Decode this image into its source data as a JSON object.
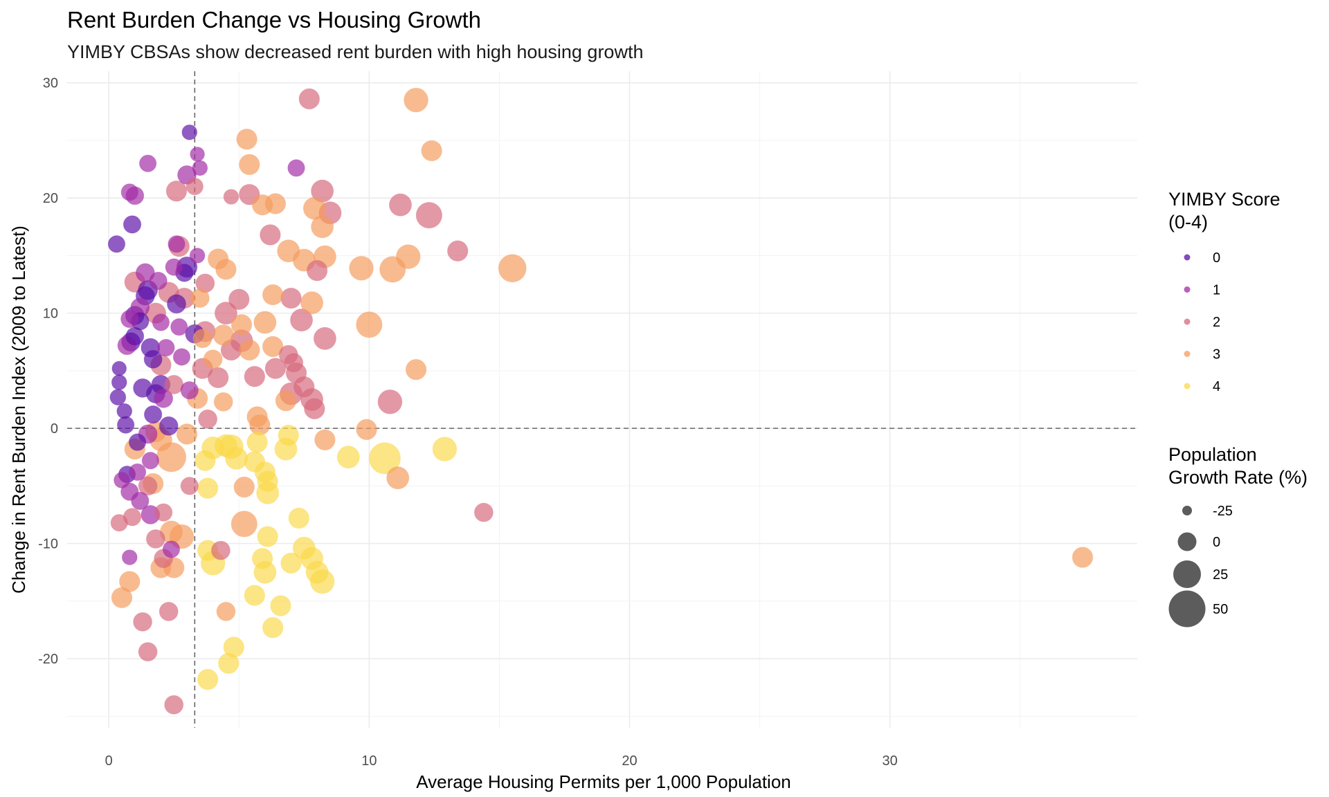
{
  "chart_data": {
    "type": "scatter",
    "title": "Rent Burden Change vs Housing Growth",
    "subtitle": "YIMBY CBSAs show decreased rent burden with high housing growth",
    "xlabel": "Average Housing Permits per 1,000 Population",
    "ylabel": "Change in Rent Burden Index (2009 to Latest)",
    "xlim": [
      -1.6,
      39.5
    ],
    "ylim": [
      -26,
      31
    ],
    "x_ticks": [
      0,
      10,
      20,
      30
    ],
    "y_ticks": [
      -20,
      -10,
      0,
      10,
      20,
      30
    ],
    "reference_lines": {
      "vertical_x": 3.3,
      "horizontal_y": 0,
      "style": "dashed"
    },
    "grid": true,
    "legend_position": "right",
    "color_legend": {
      "title_lines": [
        "YIMBY Score",
        "(0-4)"
      ],
      "entries": [
        {
          "label": "0",
          "color": "#5b0fa6"
        },
        {
          "label": "1",
          "color": "#a22aa5"
        },
        {
          "label": "2",
          "color": "#d6677c"
        },
        {
          "label": "3",
          "color": "#f59b5c"
        },
        {
          "label": "4",
          "color": "#fbd949"
        }
      ]
    },
    "size_legend": {
      "title_lines": [
        "Population",
        "Growth Rate (%)"
      ],
      "entries": [
        {
          "label": "-25",
          "value": -25
        },
        {
          "label": "0",
          "value": 0
        },
        {
          "label": "25",
          "value": 25
        },
        {
          "label": "50",
          "value": 50
        }
      ]
    },
    "points": [
      {
        "x": 0.3,
        "y": 16,
        "score": 0,
        "pop": -5
      },
      {
        "x": 0.4,
        "y": 4,
        "score": 0,
        "pop": -10
      },
      {
        "x": 0.4,
        "y": 5.2,
        "score": 0,
        "pop": -12
      },
      {
        "x": 0.35,
        "y": 2.7,
        "score": 0,
        "pop": -8
      },
      {
        "x": 0.6,
        "y": 1.5,
        "score": 0,
        "pop": -10
      },
      {
        "x": 0.65,
        "y": 0.3,
        "score": 0,
        "pop": -5
      },
      {
        "x": 0.7,
        "y": -4,
        "score": 0,
        "pop": -5
      },
      {
        "x": 0.9,
        "y": 17.7,
        "score": 0,
        "pop": -3
      },
      {
        "x": 0.85,
        "y": 7.5,
        "score": 0,
        "pop": 0
      },
      {
        "x": 1.0,
        "y": 9.8,
        "score": 0,
        "pop": 0
      },
      {
        "x": 1.0,
        "y": 8,
        "score": 0,
        "pop": -2
      },
      {
        "x": 1.1,
        "y": -1.2,
        "score": 0,
        "pop": -5
      },
      {
        "x": 1.3,
        "y": 3.5,
        "score": 0,
        "pop": 0
      },
      {
        "x": 1.5,
        "y": 12,
        "score": 0,
        "pop": 2
      },
      {
        "x": 1.4,
        "y": 11.5,
        "score": 0,
        "pop": 0
      },
      {
        "x": 1.6,
        "y": 7,
        "score": 0,
        "pop": 0
      },
      {
        "x": 1.7,
        "y": 6,
        "score": 0,
        "pop": -2
      },
      {
        "x": 1.8,
        "y": 3,
        "score": 0,
        "pop": 0
      },
      {
        "x": 1.7,
        "y": 1.2,
        "score": 0,
        "pop": -3
      },
      {
        "x": 2.0,
        "y": 3.8,
        "score": 0,
        "pop": 0
      },
      {
        "x": 2.3,
        "y": 0.2,
        "score": 0,
        "pop": 0
      },
      {
        "x": 2.6,
        "y": 10.8,
        "score": 0,
        "pop": 0
      },
      {
        "x": 2.9,
        "y": 13.5,
        "score": 0,
        "pop": -3
      },
      {
        "x": 3.1,
        "y": 25.7,
        "score": 0,
        "pop": -10
      },
      {
        "x": 3.3,
        "y": 8.2,
        "score": 0,
        "pop": 0
      },
      {
        "x": 3.0,
        "y": 14,
        "score": 0,
        "pop": 5
      },
      {
        "x": 1.2,
        "y": 9.3,
        "score": 0,
        "pop": -3
      },
      {
        "x": 0.8,
        "y": 20.5,
        "score": 1,
        "pop": -5
      },
      {
        "x": 1.0,
        "y": 20.2,
        "score": 1,
        "pop": -2
      },
      {
        "x": 1.5,
        "y": 23,
        "score": 1,
        "pop": -5
      },
      {
        "x": 3.4,
        "y": 23.8,
        "score": 1,
        "pop": -12
      },
      {
        "x": 3.5,
        "y": 22.6,
        "score": 1,
        "pop": -10
      },
      {
        "x": 3.0,
        "y": 22,
        "score": 1,
        "pop": 0
      },
      {
        "x": 2.6,
        "y": 16,
        "score": 1,
        "pop": -5
      },
      {
        "x": 3.4,
        "y": 15,
        "score": 1,
        "pop": -10
      },
      {
        "x": 2.5,
        "y": 14,
        "score": 1,
        "pop": -5
      },
      {
        "x": 1.4,
        "y": 13.5,
        "score": 1,
        "pop": 0
      },
      {
        "x": 1.9,
        "y": 12.8,
        "score": 1,
        "pop": -3
      },
      {
        "x": 1.2,
        "y": 10.5,
        "score": 1,
        "pop": 0
      },
      {
        "x": 0.8,
        "y": 9.5,
        "score": 1,
        "pop": -3
      },
      {
        "x": 0.7,
        "y": 7.2,
        "score": 1,
        "pop": 0
      },
      {
        "x": 2.2,
        "y": 7,
        "score": 1,
        "pop": -5
      },
      {
        "x": 2.8,
        "y": 6.2,
        "score": 1,
        "pop": -5
      },
      {
        "x": 2.1,
        "y": 2.6,
        "score": 1,
        "pop": 0
      },
      {
        "x": 1.5,
        "y": -0.5,
        "score": 1,
        "pop": 0
      },
      {
        "x": 1.1,
        "y": -3.8,
        "score": 1,
        "pop": -5
      },
      {
        "x": 0.5,
        "y": -4.5,
        "score": 1,
        "pop": -8
      },
      {
        "x": 0.8,
        "y": -5.5,
        "score": 1,
        "pop": -3
      },
      {
        "x": 1.2,
        "y": -6.3,
        "score": 1,
        "pop": -3
      },
      {
        "x": 1.6,
        "y": -7.5,
        "score": 1,
        "pop": 0
      },
      {
        "x": 1.6,
        "y": -2.8,
        "score": 1,
        "pop": -5
      },
      {
        "x": 0.8,
        "y": -11.2,
        "score": 1,
        "pop": -10
      },
      {
        "x": 2.4,
        "y": -10.5,
        "score": 1,
        "pop": -5
      },
      {
        "x": 3.1,
        "y": 3.3,
        "score": 1,
        "pop": -3
      },
      {
        "x": 7.2,
        "y": 22.6,
        "score": 1,
        "pop": -5
      },
      {
        "x": 2.7,
        "y": 8.8,
        "score": 1,
        "pop": -5
      },
      {
        "x": 2.0,
        "y": 9.2,
        "score": 1,
        "pop": -5
      },
      {
        "x": 7.7,
        "y": 28.6,
        "score": 2,
        "pop": 5
      },
      {
        "x": 2.6,
        "y": 20.6,
        "score": 2,
        "pop": 5
      },
      {
        "x": 3.3,
        "y": 21,
        "score": 2,
        "pop": -5
      },
      {
        "x": 4.7,
        "y": 20.1,
        "score": 2,
        "pop": -10
      },
      {
        "x": 5.4,
        "y": 20.3,
        "score": 2,
        "pop": 5
      },
      {
        "x": 8.2,
        "y": 20.6,
        "score": 2,
        "pop": 10
      },
      {
        "x": 11.2,
        "y": 19.4,
        "score": 2,
        "pop": 10
      },
      {
        "x": 12.3,
        "y": 18.5,
        "score": 2,
        "pop": 20
      },
      {
        "x": 8.5,
        "y": 18.7,
        "score": 2,
        "pop": 10
      },
      {
        "x": 6.2,
        "y": 16.8,
        "score": 2,
        "pop": 5
      },
      {
        "x": 13.4,
        "y": 15.4,
        "score": 2,
        "pop": 5
      },
      {
        "x": 8.0,
        "y": 13.7,
        "score": 2,
        "pop": 5
      },
      {
        "x": 2.7,
        "y": 15.8,
        "score": 2,
        "pop": 5
      },
      {
        "x": 1.0,
        "y": 12.7,
        "score": 2,
        "pop": 5
      },
      {
        "x": 3.7,
        "y": 12.6,
        "score": 2,
        "pop": 0
      },
      {
        "x": 5.0,
        "y": 11.2,
        "score": 2,
        "pop": 5
      },
      {
        "x": 7.0,
        "y": 11.3,
        "score": 2,
        "pop": 5
      },
      {
        "x": 7.4,
        "y": 9.4,
        "score": 2,
        "pop": 10
      },
      {
        "x": 4.5,
        "y": 10,
        "score": 2,
        "pop": 10
      },
      {
        "x": 3.7,
        "y": 8.4,
        "score": 2,
        "pop": 5
      },
      {
        "x": 5.1,
        "y": 7.6,
        "score": 2,
        "pop": 10
      },
      {
        "x": 4.7,
        "y": 6.8,
        "score": 2,
        "pop": 5
      },
      {
        "x": 6.9,
        "y": 6.4,
        "score": 2,
        "pop": 0
      },
      {
        "x": 7.1,
        "y": 5.7,
        "score": 2,
        "pop": 0
      },
      {
        "x": 8.3,
        "y": 7.8,
        "score": 2,
        "pop": 10
      },
      {
        "x": 7.2,
        "y": 4.8,
        "score": 2,
        "pop": 5
      },
      {
        "x": 7.5,
        "y": 3.6,
        "score": 2,
        "pop": 5
      },
      {
        "x": 4.2,
        "y": 4.4,
        "score": 2,
        "pop": 5
      },
      {
        "x": 5.6,
        "y": 4.5,
        "score": 2,
        "pop": 5
      },
      {
        "x": 6.4,
        "y": 5.2,
        "score": 2,
        "pop": 5
      },
      {
        "x": 7.0,
        "y": 3.0,
        "score": 2,
        "pop": 10
      },
      {
        "x": 7.8,
        "y": 2.5,
        "score": 2,
        "pop": 10
      },
      {
        "x": 7.9,
        "y": 1.7,
        "score": 2,
        "pop": 5
      },
      {
        "x": 10.8,
        "y": 2.3,
        "score": 2,
        "pop": 15
      },
      {
        "x": 3.8,
        "y": 0.8,
        "score": 2,
        "pop": 0
      },
      {
        "x": 2.5,
        "y": 3.8,
        "score": 2,
        "pop": 0
      },
      {
        "x": 3.1,
        "y": -5,
        "score": 2,
        "pop": -3
      },
      {
        "x": 2.1,
        "y": -7.3,
        "score": 2,
        "pop": -3
      },
      {
        "x": 0.9,
        "y": -7.7,
        "score": 2,
        "pop": -3
      },
      {
        "x": 0.4,
        "y": -8.2,
        "score": 2,
        "pop": -5
      },
      {
        "x": 1.8,
        "y": -9.6,
        "score": 2,
        "pop": 0
      },
      {
        "x": 2.1,
        "y": -11.3,
        "score": 2,
        "pop": 0
      },
      {
        "x": 4.3,
        "y": -10.6,
        "score": 2,
        "pop": 0
      },
      {
        "x": 1.3,
        "y": -16.8,
        "score": 2,
        "pop": 0
      },
      {
        "x": 2.3,
        "y": -15.9,
        "score": 2,
        "pop": 0
      },
      {
        "x": 1.5,
        "y": -19.4,
        "score": 2,
        "pop": 0
      },
      {
        "x": 2.5,
        "y": -24,
        "score": 2,
        "pop": 0
      },
      {
        "x": 14.4,
        "y": -7.3,
        "score": 2,
        "pop": 0
      },
      {
        "x": 1.8,
        "y": 10,
        "score": 2,
        "pop": 5
      },
      {
        "x": 2.3,
        "y": 11.8,
        "score": 2,
        "pop": 5
      },
      {
        "x": 2.9,
        "y": 11.3,
        "score": 2,
        "pop": 5
      },
      {
        "x": 3.6,
        "y": 5.2,
        "score": 2,
        "pop": 5
      },
      {
        "x": 2.0,
        "y": 5.5,
        "score": 2,
        "pop": 5
      },
      {
        "x": 1.5,
        "y": -5,
        "score": 2,
        "pop": 0
      },
      {
        "x": 11.8,
        "y": 28.5,
        "score": 3,
        "pop": 15
      },
      {
        "x": 12.4,
        "y": 24.1,
        "score": 3,
        "pop": 5
      },
      {
        "x": 5.3,
        "y": 25.1,
        "score": 3,
        "pop": 5
      },
      {
        "x": 5.4,
        "y": 22.9,
        "score": 3,
        "pop": 5
      },
      {
        "x": 6.4,
        "y": 19.5,
        "score": 3,
        "pop": 5
      },
      {
        "x": 7.9,
        "y": 19.1,
        "score": 3,
        "pop": 10
      },
      {
        "x": 5.9,
        "y": 19.4,
        "score": 3,
        "pop": 5
      },
      {
        "x": 8.2,
        "y": 17.5,
        "score": 3,
        "pop": 10
      },
      {
        "x": 6.9,
        "y": 15.4,
        "score": 3,
        "pop": 10
      },
      {
        "x": 8.3,
        "y": 14.9,
        "score": 3,
        "pop": 10
      },
      {
        "x": 7.5,
        "y": 14.6,
        "score": 3,
        "pop": 10
      },
      {
        "x": 11.5,
        "y": 14.9,
        "score": 3,
        "pop": 15
      },
      {
        "x": 10.9,
        "y": 13.8,
        "score": 3,
        "pop": 20
      },
      {
        "x": 9.7,
        "y": 13.9,
        "score": 3,
        "pop": 15
      },
      {
        "x": 15.5,
        "y": 13.9,
        "score": 3,
        "pop": 25
      },
      {
        "x": 4.2,
        "y": 14.7,
        "score": 3,
        "pop": 5
      },
      {
        "x": 4.5,
        "y": 13.8,
        "score": 3,
        "pop": 5
      },
      {
        "x": 6.3,
        "y": 11.6,
        "score": 3,
        "pop": 5
      },
      {
        "x": 7.8,
        "y": 10.9,
        "score": 3,
        "pop": 10
      },
      {
        "x": 3.5,
        "y": 11.3,
        "score": 3,
        "pop": 0
      },
      {
        "x": 10.0,
        "y": 9,
        "score": 3,
        "pop": 20
      },
      {
        "x": 6.0,
        "y": 9.2,
        "score": 3,
        "pop": 10
      },
      {
        "x": 5.1,
        "y": 9.0,
        "score": 3,
        "pop": 5
      },
      {
        "x": 4.4,
        "y": 8.1,
        "score": 3,
        "pop": 5
      },
      {
        "x": 6.3,
        "y": 7.1,
        "score": 3,
        "pop": 5
      },
      {
        "x": 5.4,
        "y": 6.8,
        "score": 3,
        "pop": 5
      },
      {
        "x": 3.6,
        "y": 7.8,
        "score": 3,
        "pop": 0
      },
      {
        "x": 4.0,
        "y": 6.0,
        "score": 3,
        "pop": 0
      },
      {
        "x": 3.4,
        "y": 2.6,
        "score": 3,
        "pop": 5
      },
      {
        "x": 4.4,
        "y": 2.3,
        "score": 3,
        "pop": 0
      },
      {
        "x": 5.7,
        "y": 1.0,
        "score": 3,
        "pop": 5
      },
      {
        "x": 5.8,
        "y": 0.3,
        "score": 3,
        "pop": 5
      },
      {
        "x": 6.8,
        "y": 2.4,
        "score": 3,
        "pop": 5
      },
      {
        "x": 9.9,
        "y": -0.1,
        "score": 3,
        "pop": 5
      },
      {
        "x": 11.8,
        "y": 5.1,
        "score": 3,
        "pop": 5
      },
      {
        "x": 8.3,
        "y": -1.0,
        "score": 3,
        "pop": 5
      },
      {
        "x": 11.1,
        "y": -4.3,
        "score": 3,
        "pop": 10
      },
      {
        "x": 5.2,
        "y": -5.1,
        "score": 3,
        "pop": 5
      },
      {
        "x": 5.2,
        "y": -8.3,
        "score": 3,
        "pop": 20
      },
      {
        "x": 2.4,
        "y": -2.5,
        "score": 3,
        "pop": 30
      },
      {
        "x": 2.0,
        "y": -1.0,
        "score": 3,
        "pop": 10
      },
      {
        "x": 1.7,
        "y": -4.8,
        "score": 3,
        "pop": 5
      },
      {
        "x": 2.8,
        "y": -9.4,
        "score": 3,
        "pop": 15
      },
      {
        "x": 2.4,
        "y": -9.0,
        "score": 3,
        "pop": 10
      },
      {
        "x": 2.0,
        "y": -12.1,
        "score": 3,
        "pop": 5
      },
      {
        "x": 2.5,
        "y": -12.1,
        "score": 3,
        "pop": 5
      },
      {
        "x": 0.8,
        "y": -13.3,
        "score": 3,
        "pop": 5
      },
      {
        "x": 0.5,
        "y": -14.7,
        "score": 3,
        "pop": 5
      },
      {
        "x": 4.5,
        "y": -15.9,
        "score": 3,
        "pop": 0
      },
      {
        "x": 37.4,
        "y": -11.2,
        "score": 3,
        "pop": 5
      },
      {
        "x": 1.0,
        "y": -1.8,
        "score": 3,
        "pop": 5
      },
      {
        "x": 3.0,
        "y": -0.5,
        "score": 3,
        "pop": 5
      },
      {
        "x": 1.8,
        "y": -0.3,
        "score": 3,
        "pop": 5
      },
      {
        "x": 3.7,
        "y": -2.8,
        "score": 4,
        "pop": 5
      },
      {
        "x": 4.0,
        "y": -1.7,
        "score": 4,
        "pop": 10
      },
      {
        "x": 4.5,
        "y": -1.5,
        "score": 4,
        "pop": 10
      },
      {
        "x": 4.7,
        "y": -1.6,
        "score": 4,
        "pop": 15
      },
      {
        "x": 4.9,
        "y": -2.6,
        "score": 4,
        "pop": 10
      },
      {
        "x": 5.6,
        "y": -2.9,
        "score": 4,
        "pop": 5
      },
      {
        "x": 5.7,
        "y": -1.2,
        "score": 4,
        "pop": 5
      },
      {
        "x": 6.0,
        "y": -3.8,
        "score": 4,
        "pop": 5
      },
      {
        "x": 6.1,
        "y": -4.6,
        "score": 4,
        "pop": 5
      },
      {
        "x": 6.1,
        "y": -5.6,
        "score": 4,
        "pop": 10
      },
      {
        "x": 6.9,
        "y": -0.6,
        "score": 4,
        "pop": 5
      },
      {
        "x": 6.8,
        "y": -1.8,
        "score": 4,
        "pop": 10
      },
      {
        "x": 9.2,
        "y": -2.5,
        "score": 4,
        "pop": 10
      },
      {
        "x": 10.6,
        "y": -2.6,
        "score": 4,
        "pop": 35
      },
      {
        "x": 12.9,
        "y": -1.8,
        "score": 4,
        "pop": 15
      },
      {
        "x": 3.8,
        "y": -5.2,
        "score": 4,
        "pop": 5
      },
      {
        "x": 3.8,
        "y": -10.6,
        "score": 4,
        "pop": 5
      },
      {
        "x": 4.0,
        "y": -11.7,
        "score": 4,
        "pop": 15
      },
      {
        "x": 6.1,
        "y": -9.4,
        "score": 4,
        "pop": 5
      },
      {
        "x": 5.9,
        "y": -11.3,
        "score": 4,
        "pop": 5
      },
      {
        "x": 6.0,
        "y": -12.5,
        "score": 4,
        "pop": 10
      },
      {
        "x": 7.3,
        "y": -7.8,
        "score": 4,
        "pop": 5
      },
      {
        "x": 7.5,
        "y": -10.4,
        "score": 4,
        "pop": 10
      },
      {
        "x": 7.8,
        "y": -11.3,
        "score": 4,
        "pop": 10
      },
      {
        "x": 7.0,
        "y": -11.7,
        "score": 4,
        "pop": 5
      },
      {
        "x": 8.0,
        "y": -12.5,
        "score": 4,
        "pop": 10
      },
      {
        "x": 8.2,
        "y": -13.3,
        "score": 4,
        "pop": 15
      },
      {
        "x": 5.6,
        "y": -14.5,
        "score": 4,
        "pop": 5
      },
      {
        "x": 6.6,
        "y": -15.4,
        "score": 4,
        "pop": 5
      },
      {
        "x": 6.3,
        "y": -17.3,
        "score": 4,
        "pop": 5
      },
      {
        "x": 4.8,
        "y": -19,
        "score": 4,
        "pop": 5
      },
      {
        "x": 4.6,
        "y": -20.4,
        "score": 4,
        "pop": 5
      },
      {
        "x": 3.8,
        "y": -21.8,
        "score": 4,
        "pop": 5
      }
    ]
  }
}
